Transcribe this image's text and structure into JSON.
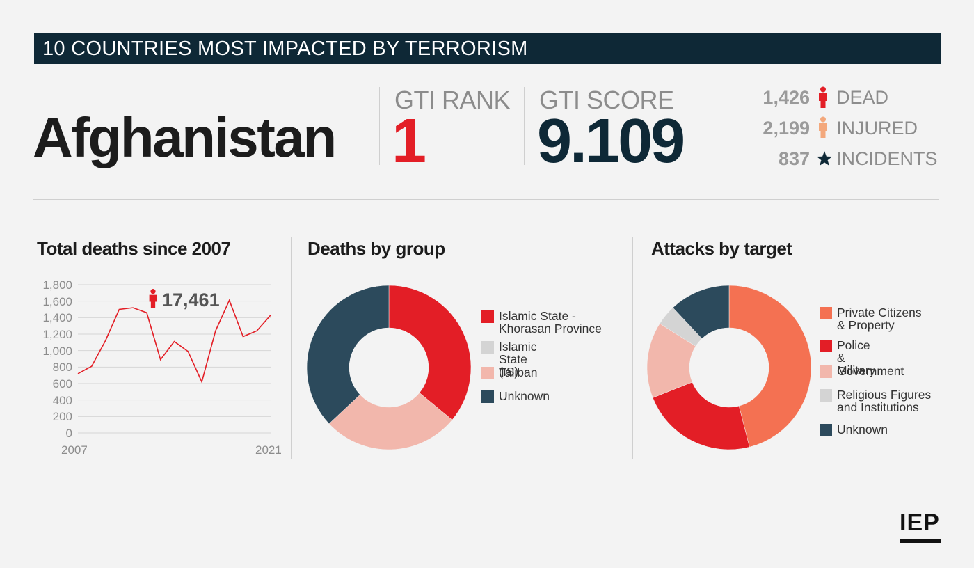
{
  "banner": {
    "title": "10 COUNTRIES MOST IMPACTED BY TERRORISM"
  },
  "country": "Afghanistan",
  "gti_rank": {
    "label": "GTI RANK",
    "value": "1"
  },
  "gti_score": {
    "label": "GTI SCORE",
    "value": "9.109"
  },
  "casualties": [
    {
      "value": "1,426",
      "label": "DEAD",
      "icon": "person-icon",
      "color": "#e31e26"
    },
    {
      "value": "2,199",
      "label": "INJURED",
      "icon": "person-icon",
      "color": "#f3a87c"
    },
    {
      "value": "837",
      "label": "INCIDENTS",
      "icon": "star-icon",
      "color": "#0e2836"
    }
  ],
  "colors": {
    "dark_navy": "#0e2836",
    "red": "#e31e26",
    "salmon": "#f47152",
    "pink": "#f2b7ac",
    "light_gray": "#d4d4d4",
    "slate": "#2c4a5c"
  },
  "chart_data": [
    {
      "type": "line",
      "title": "Total deaths since 2007",
      "x": [
        2007,
        2008,
        2009,
        2010,
        2011,
        2012,
        2013,
        2014,
        2015,
        2016,
        2017,
        2018,
        2019,
        2020,
        2021
      ],
      "x_tick_labels": [
        "2007",
        "2021"
      ],
      "series": [
        {
          "values": [
            720,
            810,
            1120,
            1500,
            1520,
            1460,
            890,
            1110,
            990,
            620,
            1240,
            1610,
            1170,
            1240,
            1430
          ],
          "color": "#e31e26"
        }
      ],
      "ylim": [
        0,
        1800
      ],
      "y_ticks": [
        "0",
        "200",
        "400",
        "600",
        "800",
        "1,000",
        "1,200",
        "1,400",
        "1,600",
        "1,800"
      ],
      "grid": true,
      "annotation": {
        "text": "17,461",
        "icon": "person-icon"
      }
    },
    {
      "type": "pie",
      "title": "Deaths by group",
      "donut": true,
      "slices": [
        {
          "label": "Islamic State - Khorasan Province",
          "value": 36,
          "color": "#e31e26"
        },
        {
          "label": "Islamic State (IS)",
          "value": 0,
          "color": "#d4d4d4"
        },
        {
          "label": "Taliban",
          "value": 27,
          "color": "#f2b7ac"
        },
        {
          "label": "Unknown",
          "value": 37,
          "color": "#2c4a5c"
        }
      ]
    },
    {
      "type": "pie",
      "title": "Attacks by target",
      "donut": true,
      "slices": [
        {
          "label": "Private Citizens & Property",
          "value": 46,
          "color": "#f47152"
        },
        {
          "label": "Police & Military",
          "value": 23,
          "color": "#e31e26"
        },
        {
          "label": "Government",
          "value": 15,
          "color": "#f2b7ac"
        },
        {
          "label": "Religious Figures and Institutions",
          "value": 4,
          "color": "#d4d4d4"
        },
        {
          "label": "Unknown",
          "value": 12,
          "color": "#2c4a5c"
        }
      ]
    }
  ],
  "logo": "IEP"
}
